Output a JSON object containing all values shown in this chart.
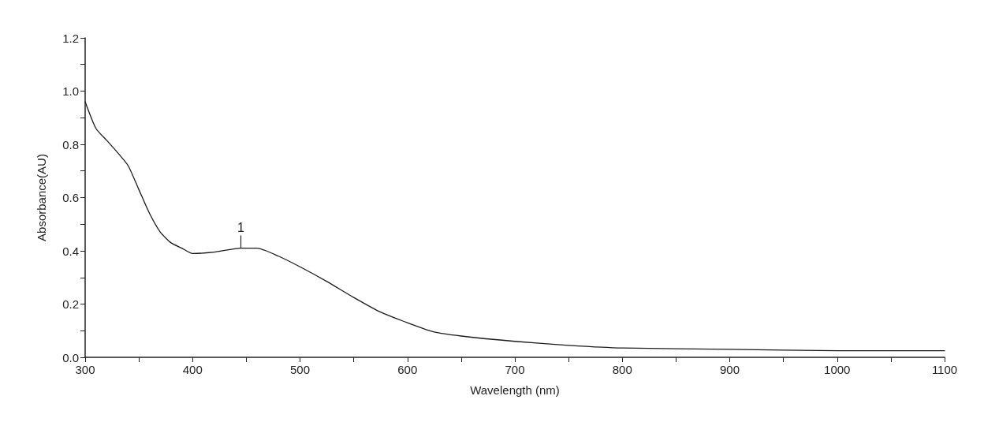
{
  "chart_data": {
    "type": "line",
    "xlabel": "Wavelength (nm)",
    "ylabel": "Absorbance(AU)",
    "x": [
      300,
      310,
      320,
      330,
      340,
      350,
      360,
      370,
      380,
      390,
      400,
      420,
      445,
      460,
      480,
      500,
      525,
      550,
      575,
      600,
      625,
      650,
      700,
      750,
      800,
      900,
      1000,
      1100
    ],
    "series": [
      {
        "color": "#1a1a1a",
        "values": [
          0.96,
          0.86,
          0.815,
          0.77,
          0.72,
          0.63,
          0.54,
          0.47,
          0.43,
          0.41,
          0.39,
          0.395,
          0.41,
          0.41,
          0.38,
          0.34,
          0.285,
          0.225,
          0.17,
          0.13,
          0.095,
          0.08,
          0.06,
          0.045,
          0.035,
          0.03,
          0.025,
          0.025
        ]
      }
    ],
    "xlim": [
      300,
      1100
    ],
    "xticks": [
      300,
      {
        "value": 350,
        "label": null
      },
      400,
      {
        "value": 450,
        "label": null
      },
      500,
      {
        "value": 550,
        "label": null
      },
      600,
      {
        "value": 650,
        "label": null
      },
      700,
      {
        "value": 750,
        "label": null
      },
      800,
      {
        "value": 850,
        "label": null
      },
      900,
      {
        "value": 950,
        "label": null
      },
      1000,
      {
        "value": 1050,
        "label": null
      },
      1100
    ],
    "ylim": [
      0,
      1.2
    ],
    "yticks": [
      {
        "value": 0,
        "label": "0.0"
      },
      {
        "value": 0.1,
        "label": null
      },
      {
        "value": 0.2,
        "label": "0.2"
      },
      {
        "value": 0.3,
        "label": null
      },
      {
        "value": 0.4,
        "label": "0.4"
      },
      {
        "value": 0.5,
        "label": null
      },
      {
        "value": 0.6,
        "label": "0.6"
      },
      {
        "value": 0.7,
        "label": null
      },
      {
        "value": 0.8,
        "label": "0.8"
      },
      {
        "value": 0.9,
        "label": null
      },
      {
        "value": 1.0,
        "label": "1.0"
      },
      {
        "value": 1.1,
        "label": null
      },
      {
        "value": 1.2,
        "label": "1.2"
      }
    ],
    "annotations": [
      {
        "text": "1",
        "x": 445,
        "y": 0.41
      }
    ],
    "grid": false,
    "marker": "none",
    "line_style": "solid"
  }
}
